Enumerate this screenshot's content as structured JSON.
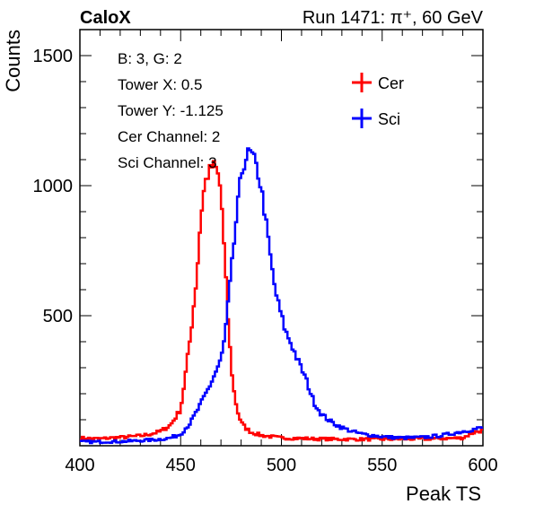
{
  "header": {
    "brand": "CaloX",
    "run_info": "Run 1471:   π⁺, 60 GeV"
  },
  "info_box": {
    "lines": [
      "B: 3, G: 2",
      "Tower X: 0.5",
      "Tower Y: -1.125",
      "Cer Channel: 2",
      "Sci Channel: 3"
    ]
  },
  "chart_data": {
    "type": "line",
    "xlabel": "Peak TS",
    "ylabel": "Counts",
    "xlim": [
      400,
      600
    ],
    "ylim": [
      0,
      1600
    ],
    "xticks": [
      400,
      450,
      500,
      550,
      600
    ],
    "yticks": [
      500,
      1000,
      1500
    ],
    "legend_position": "top-right",
    "series": [
      {
        "name": "Cer",
        "color": "#ff0000",
        "x": [
          400,
          405,
          410,
          415,
          420,
          425,
          430,
          435,
          440,
          445,
          450,
          452,
          455,
          458,
          460,
          462,
          464,
          466,
          468,
          470,
          472,
          474,
          476,
          478,
          480,
          482,
          485,
          490,
          495,
          500,
          510,
          520,
          530,
          540,
          550,
          560,
          570,
          580,
          590,
          595,
          600
        ],
        "y": [
          30,
          28,
          27,
          30,
          32,
          35,
          38,
          45,
          55,
          80,
          140,
          250,
          430,
          650,
          880,
          1010,
          1050,
          1080,
          1060,
          980,
          700,
          420,
          230,
          140,
          90,
          70,
          52,
          40,
          35,
          30,
          28,
          26,
          25,
          25,
          25,
          26,
          26,
          28,
          30,
          50,
          60
        ]
      },
      {
        "name": "Sci",
        "color": "#0000ff",
        "x": [
          400,
          405,
          410,
          415,
          420,
          425,
          430,
          435,
          440,
          445,
          450,
          455,
          460,
          465,
          470,
          472,
          474,
          476,
          478,
          480,
          482,
          484,
          486,
          488,
          490,
          492,
          494,
          496,
          498,
          500,
          502,
          505,
          508,
          512,
          516,
          520,
          525,
          530,
          535,
          540,
          545,
          550,
          555,
          560,
          570,
          580,
          590,
          600
        ],
        "y": [
          15,
          15,
          15,
          16,
          16,
          18,
          20,
          22,
          25,
          30,
          45,
          90,
          160,
          240,
          330,
          420,
          580,
          740,
          900,
          1040,
          1100,
          1130,
          1110,
          1060,
          990,
          880,
          760,
          640,
          560,
          500,
          440,
          390,
          330,
          260,
          170,
          120,
          90,
          70,
          55,
          45,
          40,
          35,
          32,
          30,
          32,
          40,
          55,
          70
        ]
      }
    ]
  }
}
